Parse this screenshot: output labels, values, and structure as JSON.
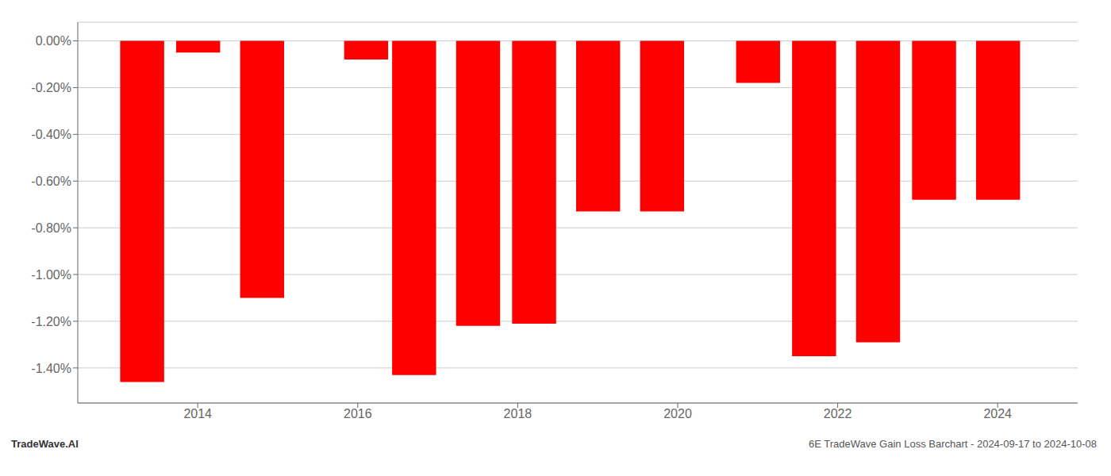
{
  "chart_data": {
    "type": "bar",
    "x": [
      2013.3,
      2014.0,
      2014.8,
      2016.1,
      2016.7,
      2017.5,
      2018.2,
      2019.0,
      2019.8,
      2021.0,
      2021.7,
      2022.5,
      2023.2,
      2024.0
    ],
    "values": [
      -1.46,
      -0.05,
      -1.1,
      -0.08,
      -1.43,
      -1.22,
      -1.21,
      -0.73,
      -0.73,
      -0.18,
      -1.35,
      -1.29,
      -0.68,
      -0.68
    ],
    "color": "#ff0000",
    "xlim": [
      2012.5,
      2025.0
    ],
    "xticks": [
      2014,
      2016,
      2018,
      2020,
      2022,
      2024
    ],
    "ylim": [
      -1.55,
      0.08
    ],
    "yticks": [
      {
        "value": 0.0,
        "label": "0.00%"
      },
      {
        "value": -0.2,
        "label": "-0.20%"
      },
      {
        "value": -0.4,
        "label": "-0.40%"
      },
      {
        "value": -0.6,
        "label": "-0.60%"
      },
      {
        "value": -0.8,
        "label": "-0.80%"
      },
      {
        "value": -1.0,
        "label": "-1.00%"
      },
      {
        "value": -1.2,
        "label": "-1.20%"
      },
      {
        "value": -1.4,
        "label": "-1.40%"
      }
    ],
    "grid": true,
    "annotations": [
      "TradeWave.AI",
      "6E TradeWave Gain Loss Barchart - 2024-09-17 to 2024-10-08"
    ]
  }
}
